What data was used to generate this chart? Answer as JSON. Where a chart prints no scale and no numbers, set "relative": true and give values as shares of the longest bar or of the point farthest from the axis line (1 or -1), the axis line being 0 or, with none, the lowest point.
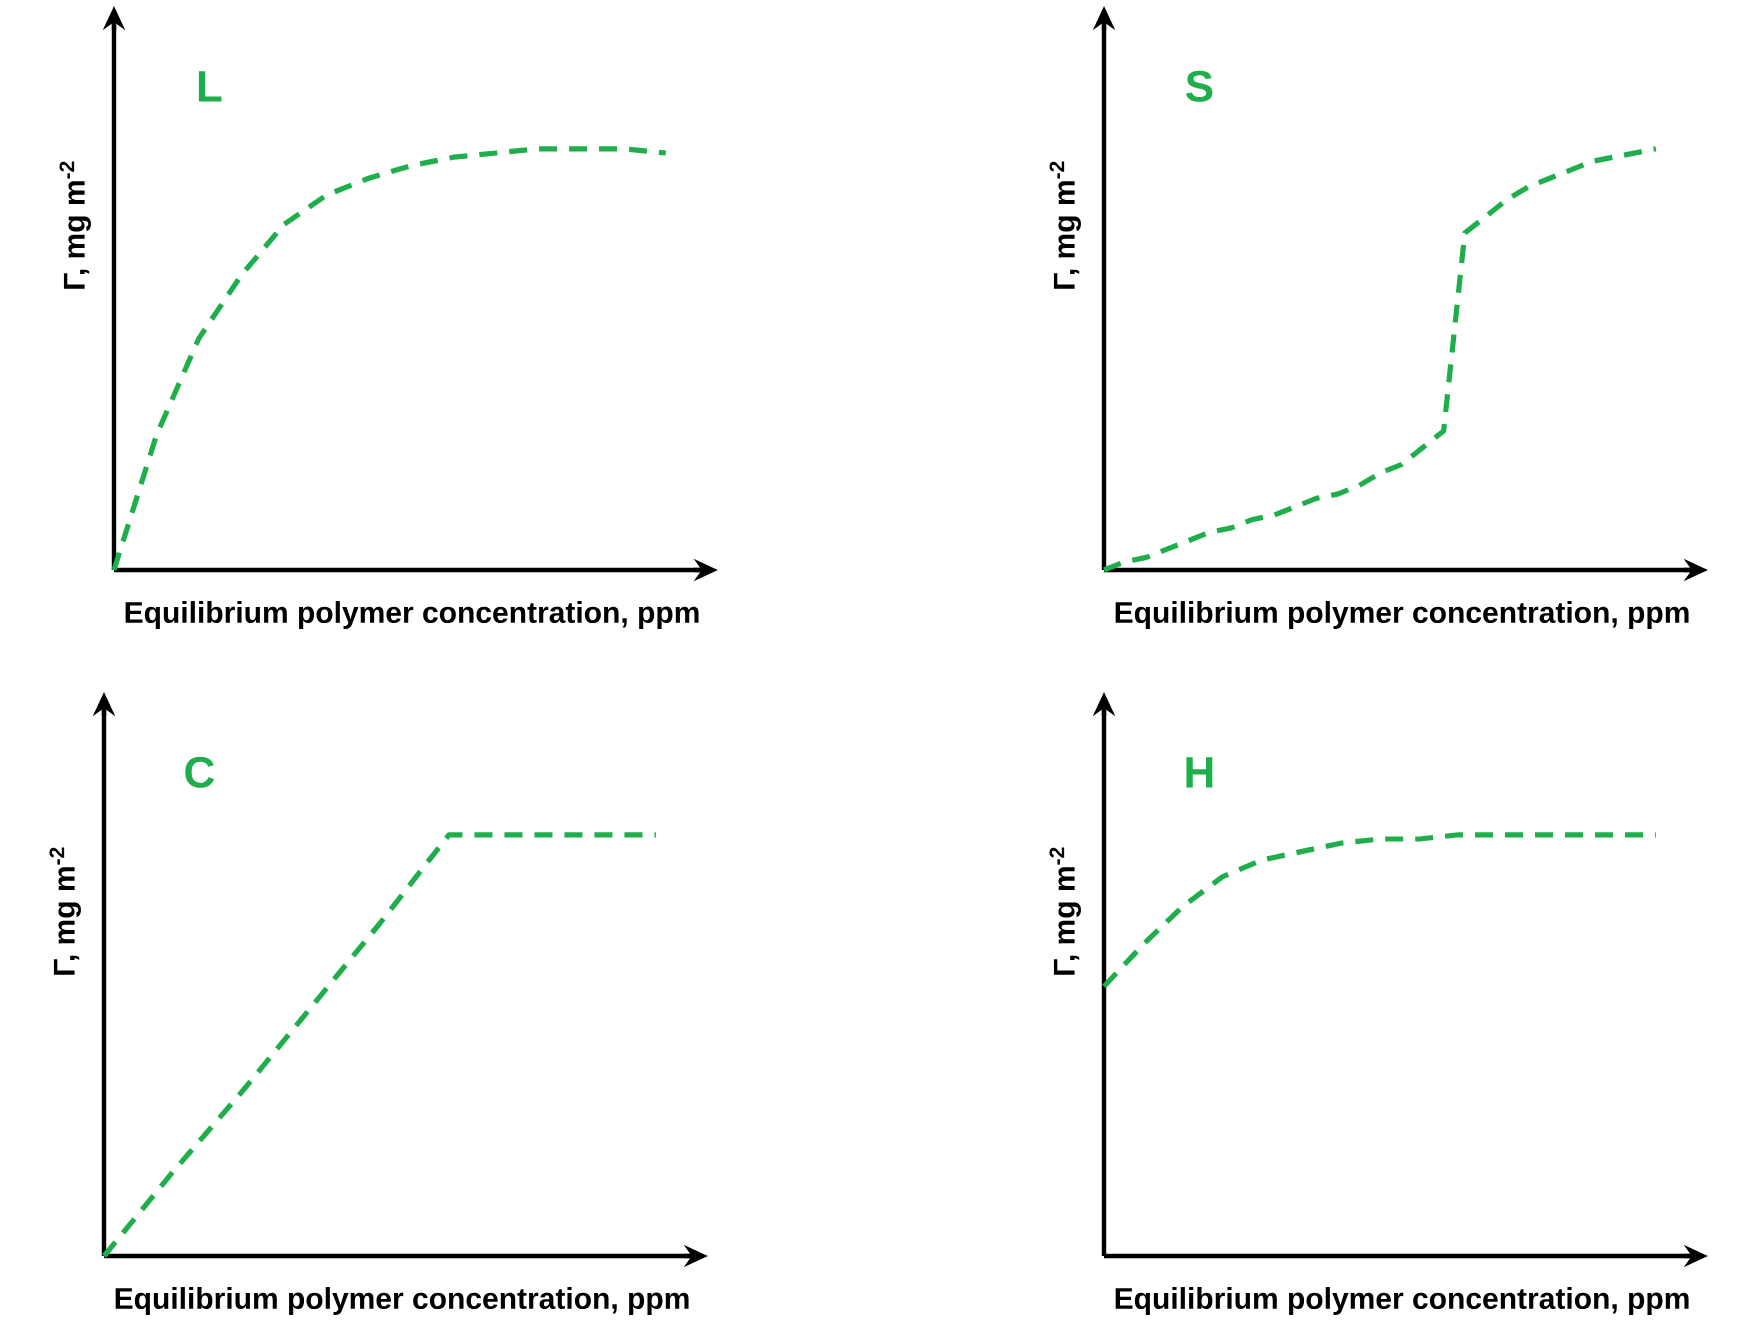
{
  "chart_data": [
    {
      "type": "line",
      "title": "L",
      "xlabel": "Equilibrium polymer concentration, ppm",
      "ylabel": "Γ, mg m$^{-2}$",
      "relative": true,
      "marker": "none",
      "line_style": "dashed",
      "categories": [
        null,
        null,
        null,
        null,
        null,
        null,
        null,
        null,
        null,
        null,
        null,
        null,
        null,
        null
      ],
      "series": [
        {
          "color": "#1fae4b",
          "values": [
            0,
            0.32,
            0.55,
            0.7,
            0.82,
            0.89,
            0.93,
            0.96,
            0.98,
            0.99,
            1,
            1,
            1,
            0.99
          ]
        }
      ]
    },
    {
      "type": "line",
      "title": "S",
      "xlabel": "Equilibrium polymer concentration, ppm",
      "ylabel": "Γ, mg m$^{-2}$",
      "relative": true,
      "marker": "none",
      "line_style": "dashed",
      "categories": [
        null,
        null,
        null,
        null,
        null,
        null,
        null,
        null,
        null,
        null,
        null,
        null,
        null,
        null,
        null,
        null,
        null,
        null,
        null,
        null,
        null,
        null,
        null,
        null,
        null,
        null,
        null
      ],
      "series": [
        {
          "color": "#1fae4b",
          "values": [
            0,
            0.02,
            0.03,
            0.05,
            0.07,
            0.09,
            0.1,
            0.12,
            0.13,
            0.15,
            0.17,
            0.18,
            0.2,
            0.23,
            0.25,
            0.29,
            0.33,
            0.8,
            0.84,
            0.88,
            0.91,
            0.93,
            0.95,
            0.97,
            0.98,
            0.99,
            1
          ]
        }
      ]
    },
    {
      "type": "line",
      "title": "C",
      "xlabel": "Equilibrium polymer concentration, ppm",
      "ylabel": "Γ, mg m$^{-2}$",
      "relative": true,
      "marker": "none",
      "line_style": "dashed",
      "categories": [
        null,
        null,
        null,
        null,
        null,
        null,
        null,
        null,
        null
      ],
      "series": [
        {
          "color": "#1fae4b",
          "values": [
            0,
            0.2,
            0.39,
            0.59,
            0.79,
            1,
            1,
            1,
            1
          ]
        }
      ]
    },
    {
      "type": "line",
      "title": "H",
      "xlabel": "Equilibrium polymer concentration, ppm",
      "ylabel": "Γ, mg m$^{-2}$",
      "relative": true,
      "marker": "none",
      "line_style": "dashed",
      "categories": [
        null,
        null,
        null,
        null,
        null,
        null,
        null,
        null,
        null,
        null,
        null,
        null,
        null,
        null,
        null
      ],
      "series": [
        {
          "color": "#1fae4b",
          "values": [
            0.64,
            0.74,
            0.83,
            0.9,
            0.94,
            0.96,
            0.98,
            0.99,
            0.99,
            1,
            1,
            1,
            1,
            1,
            1
          ]
        }
      ]
    }
  ]
}
